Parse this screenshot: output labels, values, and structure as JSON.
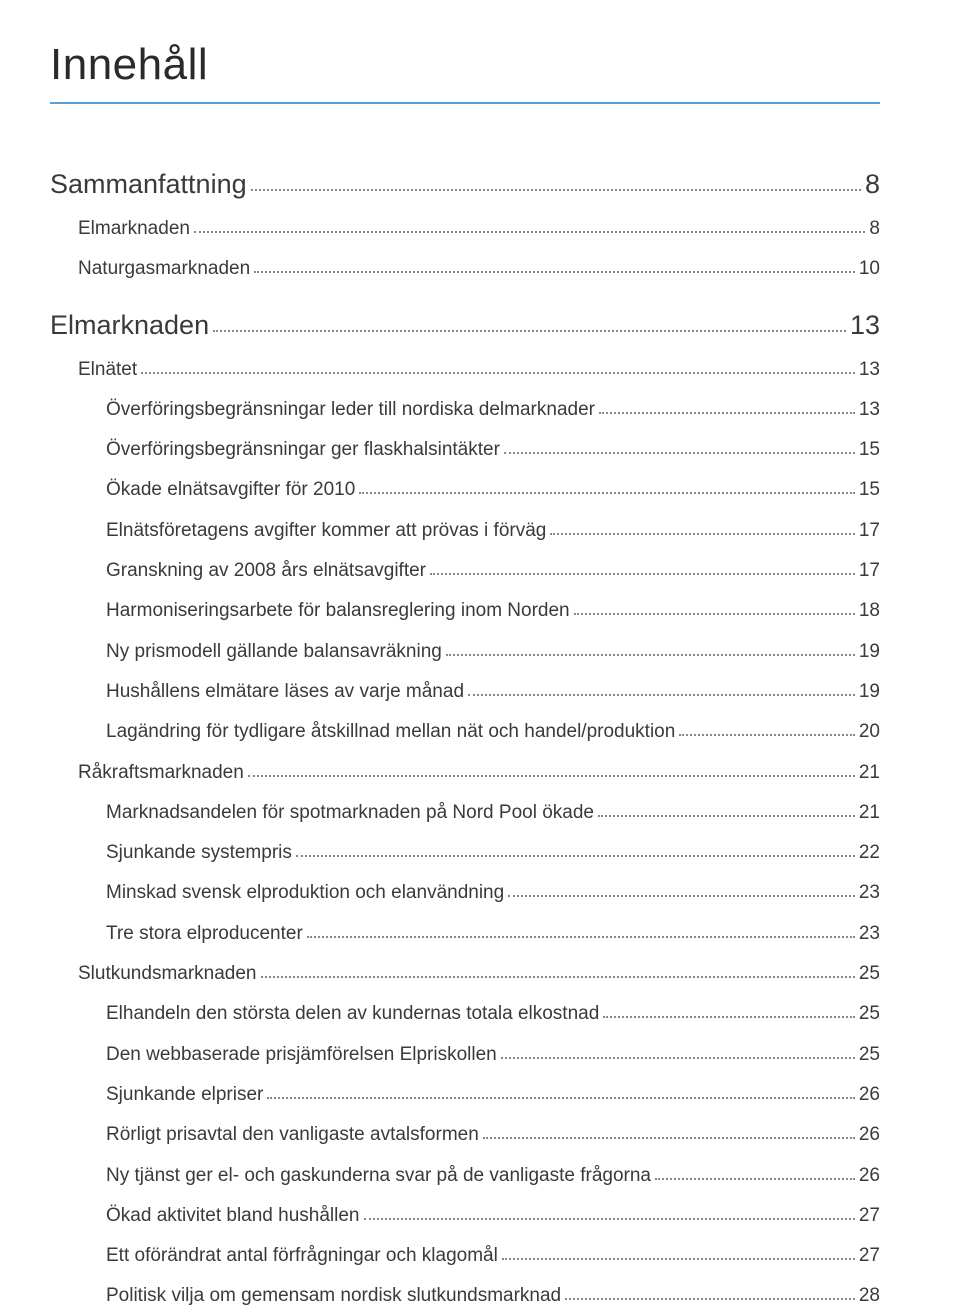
{
  "title": "Innehåll",
  "entries": [
    {
      "label": "Sammanfattning",
      "page": "8",
      "level": 0
    },
    {
      "label": "Elmarknaden",
      "page": "8",
      "level": 1
    },
    {
      "label": "Naturgasmarknaden",
      "page": "10",
      "level": 1
    },
    {
      "label": "Elmarknaden",
      "page": "13",
      "level": 0
    },
    {
      "label": "Elnätet",
      "page": "13",
      "level": 1
    },
    {
      "label": "Överföringsbegränsningar leder till nordiska delmarknader",
      "page": "13",
      "level": 2
    },
    {
      "label": "Överföringsbegränsningar ger flaskhalsintäkter",
      "page": "15",
      "level": 2
    },
    {
      "label": "Ökade elnätsavgifter för 2010",
      "page": "15",
      "level": 2
    },
    {
      "label": "Elnätsföretagens avgifter kommer att prövas i förväg",
      "page": "17",
      "level": 2
    },
    {
      "label": "Granskning av 2008 års elnätsavgifter",
      "page": "17",
      "level": 2
    },
    {
      "label": "Harmoniseringsarbete för balansreglering inom Norden",
      "page": "18",
      "level": 2
    },
    {
      "label": "Ny prismodell gällande balansavräkning",
      "page": "19",
      "level": 2
    },
    {
      "label": "Hushållens elmätare läses av varje månad",
      "page": "19",
      "level": 2
    },
    {
      "label": "Lagändring för tydligare åtskillnad mellan nät och handel/produktion",
      "page": "20",
      "level": 2
    },
    {
      "label": "Råkraftsmarknaden",
      "page": "21",
      "level": 1
    },
    {
      "label": "Marknadsandelen för spotmarknaden på Nord Pool ökade",
      "page": "21",
      "level": 2
    },
    {
      "label": "Sjunkande systempris",
      "page": "22",
      "level": 2
    },
    {
      "label": "Minskad svensk elproduktion och elanvändning",
      "page": "23",
      "level": 2
    },
    {
      "label": "Tre stora elproducenter",
      "page": "23",
      "level": 2
    },
    {
      "label": "Slutkundsmarknaden",
      "page": "25",
      "level": 1
    },
    {
      "label": "Elhandeln den största delen av kundernas totala elkostnad",
      "page": "25",
      "level": 2
    },
    {
      "label": "Den webbaserade prisjämförelsen Elpriskollen",
      "page": "25",
      "level": 2
    },
    {
      "label": "Sjunkande elpriser",
      "page": "26",
      "level": 2
    },
    {
      "label": "Rörligt prisavtal den vanligaste avtalsformen",
      "page": "26",
      "level": 2
    },
    {
      "label": "Ny tjänst ger el- och gaskunderna svar på de vanligaste frågorna",
      "page": "26",
      "level": 2
    },
    {
      "label": "Ökad aktivitet bland hushållen",
      "page": "27",
      "level": 2
    },
    {
      "label": "Ett oförändrat antal förfrågningar och klagomål",
      "page": "27",
      "level": 2
    },
    {
      "label": "Politisk vilja om gemensam nordisk slutkundsmarknad",
      "page": "28",
      "level": 2
    }
  ]
}
